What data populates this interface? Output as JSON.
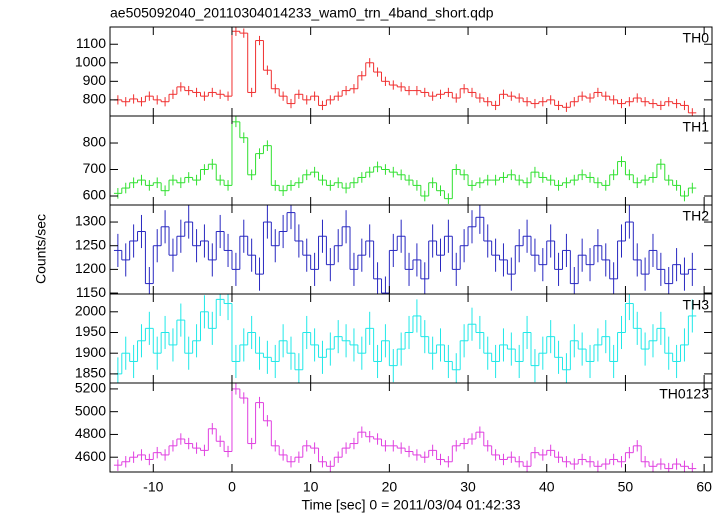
{
  "chart_data": {
    "type": "step",
    "title": "ae505092040_20110304014233_wam0_trn_4band_short.qdp",
    "ylabel": "Counts/sec",
    "xlabel": "Time [sec] 0 = 2011/03/04 01:42:33",
    "xlim": [
      -15.5,
      61
    ],
    "xticks": [
      -10,
      0,
      10,
      20,
      30,
      40,
      50,
      60
    ],
    "x": [
      -14.5,
      -13.5,
      -12.5,
      -11.5,
      -10.5,
      -9.5,
      -8.5,
      -7.5,
      -6.5,
      -5.5,
      -4.5,
      -3.5,
      -2.5,
      -1.5,
      -0.5,
      0.5,
      1.5,
      2.5,
      3.5,
      4.5,
      5.5,
      6.5,
      7.5,
      8.5,
      9.5,
      10.5,
      11.5,
      12.5,
      13.5,
      14.5,
      15.5,
      16.5,
      17.5,
      18.5,
      19.5,
      20.5,
      21.5,
      22.5,
      23.5,
      24.5,
      25.5,
      26.5,
      27.5,
      28.5,
      29.5,
      30.5,
      31.5,
      32.5,
      33.5,
      34.5,
      35.5,
      36.5,
      37.5,
      38.5,
      39.5,
      40.5,
      41.5,
      42.5,
      43.5,
      44.5,
      45.5,
      46.5,
      47.5,
      48.5,
      49.5,
      50.5,
      51.5,
      52.5,
      53.5,
      54.5,
      55.5,
      56.5,
      57.5,
      58.5
    ],
    "series": [
      {
        "name": "TH0",
        "color": "#f03030",
        "error": 25,
        "ylim": [
          713,
          1193
        ],
        "yticks": [
          800,
          900,
          1000,
          1100
        ],
        "values": [
          800,
          790,
          805,
          790,
          820,
          800,
          790,
          830,
          870,
          850,
          840,
          820,
          840,
          830,
          820,
          1170,
          1160,
          840,
          1120,
          960,
          860,
          820,
          780,
          830,
          800,
          820,
          770,
          800,
          820,
          850,
          860,
          930,
          1000,
          950,
          900,
          880,
          870,
          850,
          850,
          840,
          820,
          830,
          840,
          810,
          860,
          840,
          810,
          790,
          770,
          830,
          820,
          810,
          790,
          780,
          790,
          800,
          770,
          760,
          790,
          820,
          810,
          840,
          820,
          800,
          780,
          790,
          810,
          790,
          780,
          770,
          790,
          780,
          770,
          730
        ]
      },
      {
        "name": "TH1",
        "color": "#30e030",
        "error": 20,
        "ylim": [
          566,
          902
        ],
        "yticks": [
          600,
          700,
          800
        ],
        "values": [
          610,
          630,
          650,
          660,
          640,
          650,
          620,
          660,
          650,
          670,
          660,
          700,
          720,
          660,
          640,
          880,
          820,
          680,
          760,
          790,
          640,
          620,
          640,
          650,
          680,
          690,
          660,
          640,
          650,
          630,
          650,
          670,
          690,
          710,
          700,
          690,
          680,
          660,
          640,
          600,
          650,
          620,
          590,
          700,
          680,
          640,
          650,
          660,
          660,
          670,
          680,
          660,
          650,
          690,
          670,
          660,
          640,
          650,
          660,
          680,
          670,
          650,
          640,
          680,
          730,
          680,
          650,
          660,
          670,
          720,
          660,
          640,
          600,
          630
        ]
      },
      {
        "name": "TH2",
        "color": "#2828c0",
        "error": 35,
        "ylim": [
          1148,
          1336
        ],
        "yticks": [
          1150,
          1200,
          1250,
          1300
        ],
        "values": [
          1240,
          1220,
          1260,
          1280,
          1170,
          1250,
          1290,
          1230,
          1270,
          1300,
          1250,
          1260,
          1220,
          1280,
          1240,
          1200,
          1270,
          1230,
          1190,
          1300,
          1250,
          1280,
          1320,
          1260,
          1230,
          1200,
          1270,
          1210,
          1250,
          1290,
          1200,
          1230,
          1260,
          1180,
          1150,
          1240,
          1270,
          1200,
          1220,
          1180,
          1260,
          1230,
          1270,
          1200,
          1250,
          1290,
          1310,
          1260,
          1230,
          1220,
          1190,
          1250,
          1270,
          1230,
          1210,
          1260,
          1200,
          1240,
          1170,
          1230,
          1210,
          1250,
          1220,
          1180,
          1260,
          1300,
          1220,
          1190,
          1240,
          1200,
          1170,
          1210,
          1190,
          1200
        ]
      },
      {
        "name": "TH3",
        "color": "#20e8e8",
        "error": 40,
        "ylim": [
          1828,
          2043
        ],
        "yticks": [
          1850,
          1900,
          1950,
          2000
        ],
        "values": [
          1850,
          1900,
          1880,
          1930,
          1960,
          1900,
          1950,
          1920,
          1980,
          1900,
          1930,
          2000,
          1960,
          2030,
          2020,
          1880,
          1920,
          1950,
          1900,
          1890,
          1880,
          1930,
          1900,
          1860,
          1950,
          1920,
          1890,
          1910,
          1940,
          1930,
          1920,
          1900,
          1960,
          1880,
          1930,
          1870,
          1910,
          1950,
          1990,
          1940,
          1900,
          1920,
          1880,
          1860,
          1930,
          1970,
          1950,
          1900,
          1880,
          1920,
          1910,
          1880,
          1950,
          1870,
          1900,
          1940,
          1890,
          1860,
          1930,
          1910,
          1880,
          1920,
          1940,
          1880,
          1950,
          2020,
          1960,
          1910,
          1930,
          1960,
          1900,
          1880,
          1920,
          1990
        ]
      },
      {
        "name": "TH0123",
        "color": "#e040e0",
        "error": 50,
        "ylim": [
          4470,
          5252
        ],
        "yticks": [
          4600,
          4800,
          5000,
          5200
        ],
        "values": [
          4530,
          4560,
          4600,
          4620,
          4580,
          4640,
          4620,
          4700,
          4760,
          4720,
          4680,
          4660,
          4850,
          4740,
          4650,
          5200,
          5120,
          4720,
          5080,
          4920,
          4700,
          4620,
          4560,
          4600,
          4700,
          4680,
          4560,
          4520,
          4600,
          4680,
          4720,
          4820,
          4780,
          4760,
          4700,
          4700,
          4680,
          4650,
          4620,
          4600,
          4660,
          4580,
          4560,
          4700,
          4720,
          4760,
          4820,
          4700,
          4620,
          4580,
          4600,
          4560,
          4520,
          4640,
          4620,
          4660,
          4600,
          4560,
          4540,
          4580,
          4560,
          4520,
          4540,
          4580,
          4560,
          4640,
          4700,
          4560,
          4520,
          4540,
          4500,
          4540,
          4520,
          4500
        ]
      }
    ]
  }
}
